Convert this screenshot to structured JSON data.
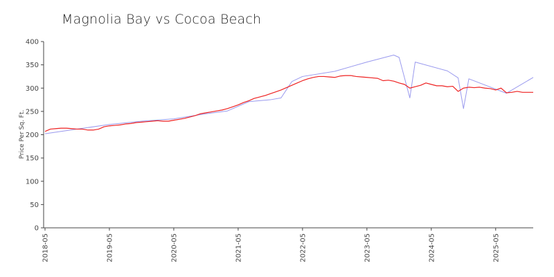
{
  "chart_data": {
    "type": "line",
    "title": "Magnolia Bay vs Cocoa Beach",
    "xlabel": "",
    "ylabel": "Price Per Sq. Ft.",
    "ylim": [
      0,
      400
    ],
    "xlim": [
      "2018-05",
      "2025-12"
    ],
    "grid": false,
    "y_ticks": [
      "0",
      "50",
      "100",
      "150",
      "200",
      "250",
      "300",
      "350",
      "400"
    ],
    "x_ticks": [
      "2018-05",
      "2019-05",
      "2020-05",
      "2021-05",
      "2022-05",
      "2023-05",
      "2024-05",
      "2025-05"
    ],
    "colors": {
      "series_a": "#ee2222",
      "series_b": "#9999ee",
      "axis": "#444444"
    },
    "series": [
      {
        "color": "#ee2222",
        "points": [
          [
            "2018-05",
            207
          ],
          [
            "2018-06",
            212
          ],
          [
            "2018-07",
            213
          ],
          [
            "2018-08",
            214
          ],
          [
            "2018-09",
            214
          ],
          [
            "2018-10",
            213
          ],
          [
            "2018-11",
            212
          ],
          [
            "2018-12",
            212
          ],
          [
            "2019-01",
            210
          ],
          [
            "2019-02",
            210
          ],
          [
            "2019-03",
            212
          ],
          [
            "2019-04",
            217
          ],
          [
            "2019-05",
            219
          ],
          [
            "2019-06",
            220
          ],
          [
            "2019-07",
            221
          ],
          [
            "2019-08",
            223
          ],
          [
            "2019-09",
            224
          ],
          [
            "2019-10",
            226
          ],
          [
            "2019-11",
            227
          ],
          [
            "2019-12",
            228
          ],
          [
            "2020-01",
            229
          ],
          [
            "2020-02",
            230
          ],
          [
            "2020-03",
            229
          ],
          [
            "2020-04",
            229
          ],
          [
            "2020-05",
            231
          ],
          [
            "2020-06",
            233
          ],
          [
            "2020-07",
            235
          ],
          [
            "2020-08",
            238
          ],
          [
            "2020-09",
            241
          ],
          [
            "2020-10",
            245
          ],
          [
            "2020-11",
            247
          ],
          [
            "2020-12",
            249
          ],
          [
            "2021-01",
            251
          ],
          [
            "2021-02",
            253
          ],
          [
            "2021-03",
            256
          ],
          [
            "2021-04",
            260
          ],
          [
            "2021-05",
            264
          ],
          [
            "2021-06",
            269
          ],
          [
            "2021-07",
            273
          ],
          [
            "2021-08",
            278
          ],
          [
            "2021-09",
            281
          ],
          [
            "2021-10",
            284
          ],
          [
            "2021-11",
            288
          ],
          [
            "2021-12",
            292
          ],
          [
            "2022-01",
            296
          ],
          [
            "2022-02",
            301
          ],
          [
            "2022-03",
            306
          ],
          [
            "2022-04",
            311
          ],
          [
            "2022-05",
            316
          ],
          [
            "2022-06",
            320
          ],
          [
            "2022-07",
            323
          ],
          [
            "2022-08",
            325
          ],
          [
            "2022-09",
            325
          ],
          [
            "2022-10",
            324
          ],
          [
            "2022-11",
            323
          ],
          [
            "2022-12",
            326
          ],
          [
            "2023-01",
            327
          ],
          [
            "2023-02",
            327
          ],
          [
            "2023-03",
            325
          ],
          [
            "2023-04",
            324
          ],
          [
            "2023-05",
            323
          ],
          [
            "2023-06",
            322
          ],
          [
            "2023-07",
            321
          ],
          [
            "2023-08",
            316
          ],
          [
            "2023-09",
            317
          ],
          [
            "2023-10",
            315
          ],
          [
            "2023-11",
            311
          ],
          [
            "2023-12",
            308
          ],
          [
            "2024-01",
            300
          ],
          [
            "2024-02",
            303
          ],
          [
            "2024-03",
            306
          ],
          [
            "2024-04",
            311
          ],
          [
            "2024-05",
            308
          ],
          [
            "2024-06",
            305
          ],
          [
            "2024-07",
            305
          ],
          [
            "2024-08",
            303
          ],
          [
            "2024-09",
            304
          ],
          [
            "2024-10",
            293
          ],
          [
            "2024-11",
            300
          ],
          [
            "2024-12",
            302
          ],
          [
            "2025-01",
            301
          ],
          [
            "2025-02",
            302
          ],
          [
            "2025-03",
            300
          ],
          [
            "2025-04",
            299
          ],
          [
            "2025-05",
            296
          ],
          [
            "2025-06",
            300
          ],
          [
            "2025-07",
            290
          ],
          [
            "2025-08",
            291
          ],
          [
            "2025-09",
            293
          ],
          [
            "2025-10",
            291
          ],
          [
            "2025-11",
            291
          ],
          [
            "2025-12",
            291
          ]
        ]
      },
      {
        "color": "#9999ee",
        "points": [
          [
            "2018-05",
            202
          ],
          [
            "2018-11",
            212
          ],
          [
            "2019-05",
            222
          ],
          [
            "2019-11",
            229
          ],
          [
            "2020-05",
            234
          ],
          [
            "2020-11",
            245
          ],
          [
            "2021-03",
            251
          ],
          [
            "2021-07",
            271
          ],
          [
            "2021-11",
            275
          ],
          [
            "2022-01",
            279
          ],
          [
            "2022-03",
            314
          ],
          [
            "2022-05",
            325
          ],
          [
            "2022-11",
            336
          ],
          [
            "2023-05",
            356
          ],
          [
            "2023-10",
            371
          ],
          [
            "2023-11",
            366
          ],
          [
            "2024-01",
            279
          ],
          [
            "2024-02",
            356
          ],
          [
            "2024-08",
            337
          ],
          [
            "2024-10",
            322
          ],
          [
            "2024-11",
            256
          ],
          [
            "2024-12",
            320
          ],
          [
            "2025-07",
            289
          ],
          [
            "2025-12",
            323
          ]
        ]
      }
    ]
  }
}
